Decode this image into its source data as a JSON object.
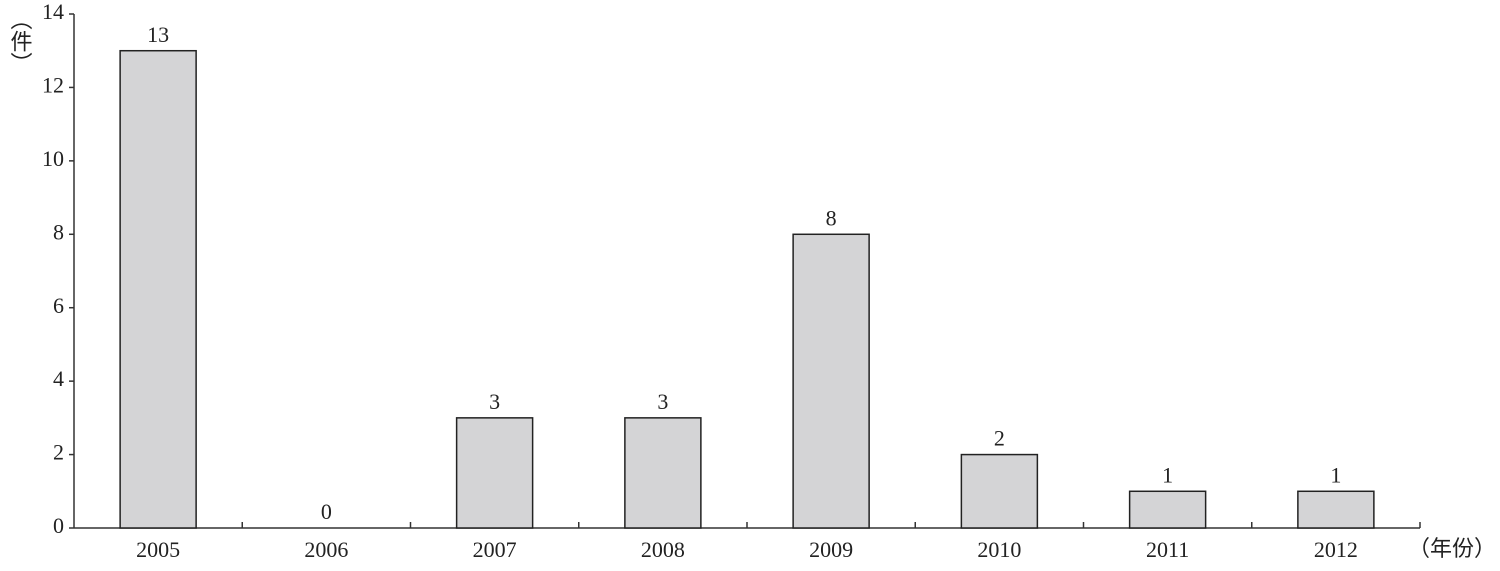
{
  "chart_data": {
    "type": "bar",
    "y_label": "（件）",
    "x_label": "（年份）",
    "categories": [
      "2005",
      "2006",
      "2007",
      "2008",
      "2009",
      "2010",
      "2011",
      "2012"
    ],
    "values": [
      13,
      0,
      3,
      3,
      8,
      2,
      1,
      1
    ],
    "color": "#d4d4d6",
    "ylim": [
      0,
      14
    ],
    "yticks": [
      0,
      2,
      4,
      6,
      8,
      10,
      12,
      14
    ],
    "grid": false
  }
}
